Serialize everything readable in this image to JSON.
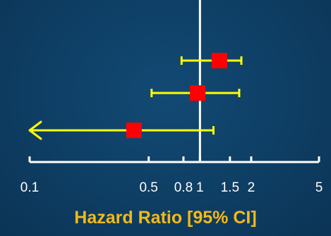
{
  "chart_data": {
    "type": "forest",
    "xlabel": "Hazard Ratio [95% CI]",
    "x_scale": "log",
    "xlim": [
      0.1,
      5
    ],
    "x_ticks": [
      0.1,
      0.5,
      0.8,
      1,
      1.5,
      2,
      5
    ],
    "x_tick_labels": [
      "0.1",
      "0.5",
      "0.8",
      "1",
      "1.5",
      "2",
      "5"
    ],
    "reference_line": 1,
    "rows": [
      {
        "hr": 1.3,
        "ci_lower": 0.78,
        "ci_upper": 1.75,
        "arrow_left": false
      },
      {
        "hr": 0.97,
        "ci_lower": 0.52,
        "ci_upper": 1.7,
        "arrow_left": false
      },
      {
        "hr": 0.41,
        "ci_lower": 0.1,
        "ci_upper": 1.2,
        "arrow_left": true
      }
    ],
    "colors": {
      "background": "#0e3e64",
      "ci_line": "#ffff00",
      "point": "#ff0000",
      "axis": "#ffffff",
      "reference_line": "#ffffff",
      "xlabel": "#f5b914"
    }
  }
}
